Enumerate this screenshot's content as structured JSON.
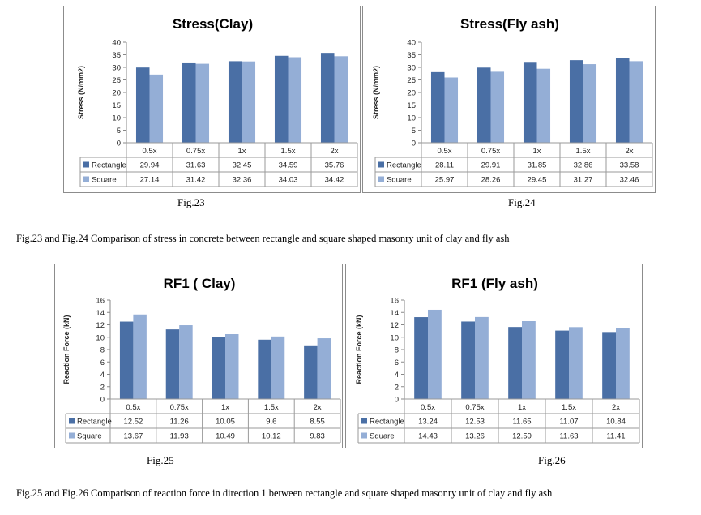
{
  "chart_data": [
    {
      "type": "bar",
      "title": "Stress(Clay)",
      "ylabel": "Stress (N/mm2)",
      "xlabel": "",
      "ylim": [
        0,
        40
      ],
      "yticks": [
        0,
        5,
        10,
        15,
        20,
        25,
        30,
        35,
        40
      ],
      "categories": [
        "0.5x",
        "0.75x",
        "1x",
        "1.5x",
        "2x"
      ],
      "series": [
        {
          "name": "Rectangle",
          "values": [
            29.94,
            31.63,
            32.45,
            34.59,
            35.76
          ],
          "labels": [
            "29.94",
            "31.63",
            "32.45",
            "34.59",
            "35.76"
          ],
          "color": "#4a6fa5"
        },
        {
          "name": "Square",
          "values": [
            27.14,
            31.42,
            32.36,
            34.03,
            34.42
          ],
          "labels": [
            "27.14",
            "31.42",
            "32.36",
            "34.03",
            "34.42"
          ],
          "color": "#94aed6"
        }
      ],
      "legend": "data-table",
      "grid": false
    },
    {
      "type": "bar",
      "title": "Stress(Fly ash)",
      "ylabel": "Stress (N/mm2)",
      "xlabel": "",
      "ylim": [
        0,
        40
      ],
      "yticks": [
        0,
        5,
        10,
        15,
        20,
        25,
        30,
        35,
        40
      ],
      "categories": [
        "0.5x",
        "0.75x",
        "1x",
        "1.5x",
        "2x"
      ],
      "series": [
        {
          "name": "Rectangle",
          "values": [
            28.11,
            29.91,
            31.85,
            32.86,
            33.58
          ],
          "labels": [
            "28.11",
            "29.91",
            "31.85",
            "32.86",
            "33.58"
          ],
          "color": "#4a6fa5"
        },
        {
          "name": "Square",
          "values": [
            25.97,
            28.26,
            29.45,
            31.27,
            32.46
          ],
          "labels": [
            "25.97",
            "28.26",
            "29.45",
            "31.27",
            "32.46"
          ],
          "color": "#94aed6"
        }
      ],
      "legend": "data-table",
      "grid": false
    },
    {
      "type": "bar",
      "title": "RF1 ( Clay)",
      "ylabel": "Reaction Force (kN)",
      "xlabel": "",
      "ylim": [
        0,
        16
      ],
      "yticks": [
        0,
        2,
        4,
        6,
        8,
        10,
        12,
        14,
        16
      ],
      "categories": [
        "0.5x",
        "0.75x",
        "1x",
        "1.5x",
        "2x"
      ],
      "series": [
        {
          "name": "Rectangle",
          "values": [
            12.52,
            11.26,
            10.05,
            9.6,
            8.55
          ],
          "labels": [
            "12.52",
            "11.26",
            "10.05",
            "9.6",
            "8.55"
          ],
          "color": "#4a6fa5"
        },
        {
          "name": "Square",
          "values": [
            13.67,
            11.93,
            10.49,
            10.12,
            9.83
          ],
          "labels": [
            "13.67",
            "11.93",
            "10.49",
            "10.12",
            "9.83"
          ],
          "color": "#94aed6"
        }
      ],
      "legend": "data-table",
      "grid": false
    },
    {
      "type": "bar",
      "title": "RF1 (Fly ash)",
      "ylabel": "Reaction Force (kN)",
      "xlabel": "",
      "ylim": [
        0,
        16
      ],
      "yticks": [
        0,
        2,
        4,
        6,
        8,
        10,
        12,
        14,
        16
      ],
      "categories": [
        "0.5x",
        "0.75x",
        "1x",
        "1.5x",
        "2x"
      ],
      "series": [
        {
          "name": "Rectangle",
          "values": [
            13.24,
            12.53,
            11.65,
            11.07,
            10.84
          ],
          "labels": [
            "13.24",
            "12.53",
            "11.65",
            "11.07",
            "10.84"
          ],
          "color": "#4a6fa5"
        },
        {
          "name": "Square",
          "values": [
            14.43,
            13.26,
            12.59,
            11.63,
            11.41
          ],
          "labels": [
            "14.43",
            "13.26",
            "12.59",
            "11.63",
            "11.41"
          ],
          "color": "#94aed6"
        }
      ],
      "legend": "data-table",
      "grid": false
    }
  ],
  "figures": {
    "fig23": "Fig.23",
    "fig24": "Fig.24",
    "fig25": "Fig.25",
    "fig26": "Fig.26"
  },
  "captions": {
    "top": "Fig.23 and Fig.24   Comparison of stress in concrete between rectangle and square shaped masonry unit of clay and fly ash",
    "bottom": "Fig.25 and Fig.26   Comparison of reaction force in direction 1  between rectangle and square shaped masonry unit of clay and fly ash"
  }
}
